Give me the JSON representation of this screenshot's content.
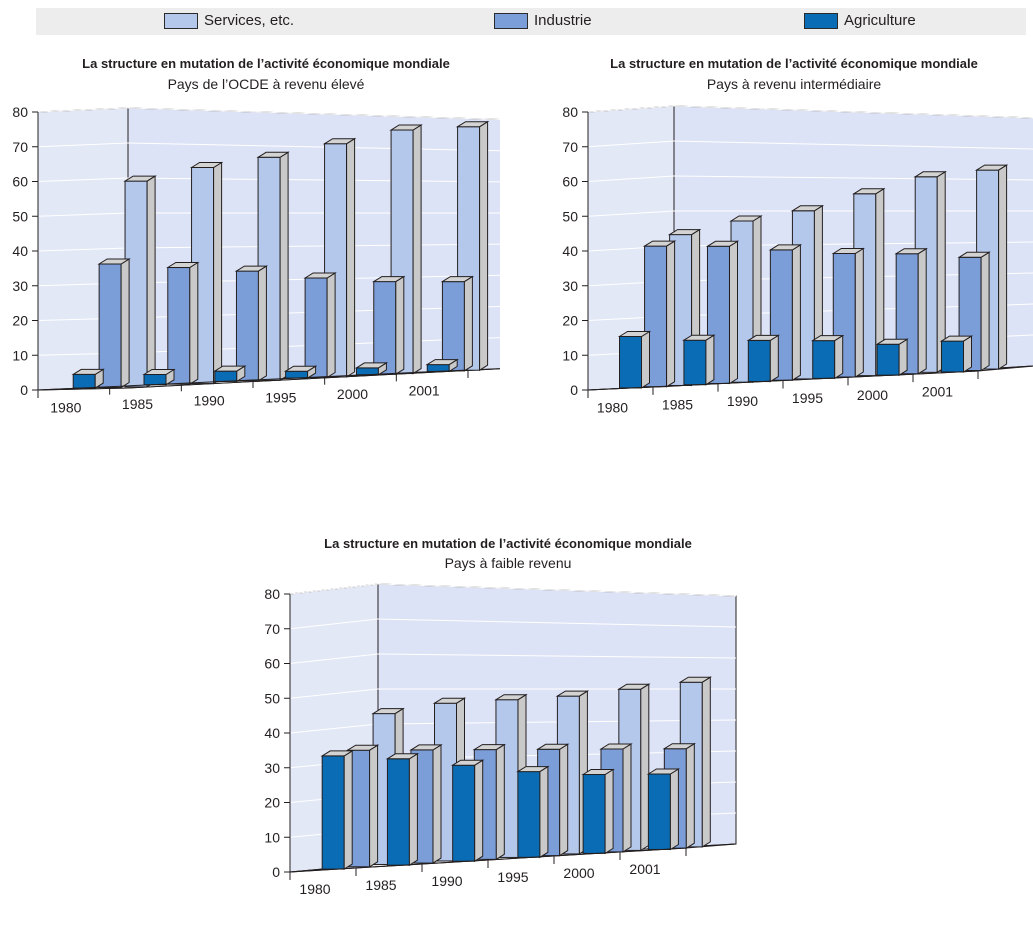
{
  "legend": {
    "items": [
      {
        "label": "Services, etc.",
        "color": "#b4c8ec"
      },
      {
        "label": "Industrie",
        "color": "#7b9ed8"
      },
      {
        "label": "Agriculture",
        "color": "#0a6cb4"
      }
    ]
  },
  "chart_data": [
    {
      "type": "bar",
      "title": "La structure en mutation de l’activité économique mondiale",
      "subtitle": "Pays de l’OCDE à revenu élevé",
      "categories": [
        "1980",
        "1985",
        "1990",
        "1995",
        "2000",
        "2001"
      ],
      "ylim": [
        0,
        80
      ],
      "yticks": [
        "0",
        "10",
        "20",
        "30",
        "40",
        "50",
        "60",
        "70",
        "80"
      ],
      "grid": true,
      "series": [
        {
          "name": "Services, etc.",
          "values": [
            60,
            63,
            65,
            68,
            71,
            71
          ]
        },
        {
          "name": "Industrie",
          "values": [
            36,
            34,
            32,
            29,
            27,
            26
          ]
        },
        {
          "name": "Agriculture",
          "values": [
            4,
            3,
            3,
            2,
            2,
            2
          ]
        }
      ]
    },
    {
      "type": "bar",
      "title": "La structure en mutation de l’activité économique mondiale",
      "subtitle": "Pays à revenu intermédiaire",
      "categories": [
        "1980",
        "1985",
        "1990",
        "1995",
        "2000",
        "2001"
      ],
      "ylim": [
        0,
        80
      ],
      "yticks": [
        "0",
        "10",
        "20",
        "30",
        "40",
        "50",
        "60",
        "70",
        "80"
      ],
      "grid": true,
      "series": [
        {
          "name": "Services, etc.",
          "values": [
            44,
            47,
            49,
            53,
            57,
            58
          ]
        },
        {
          "name": "Industrie",
          "values": [
            41,
            40,
            38,
            36,
            35,
            33
          ]
        },
        {
          "name": "Agriculture",
          "values": [
            15,
            13,
            12,
            11,
            9,
            9
          ]
        }
      ]
    },
    {
      "type": "bar",
      "title": "La structure en mutation de l’activité économique mondiale",
      "subtitle": "Pays à faible revenu",
      "categories": [
        "1980",
        "1985",
        "1990",
        "1995",
        "2000",
        "2001"
      ],
      "ylim": [
        0,
        80
      ],
      "yticks": [
        "0",
        "10",
        "20",
        "30",
        "40",
        "50",
        "60",
        "70",
        "80"
      ],
      "grid": true,
      "series": [
        {
          "name": "Services, etc.",
          "values": [
            44,
            46,
            46,
            46,
            47,
            48
          ]
        },
        {
          "name": "Industrie",
          "values": [
            34,
            33,
            32,
            31,
            30,
            29
          ]
        },
        {
          "name": "Agriculture",
          "values": [
            33,
            31,
            28,
            25,
            23,
            22
          ]
        }
      ]
    }
  ]
}
